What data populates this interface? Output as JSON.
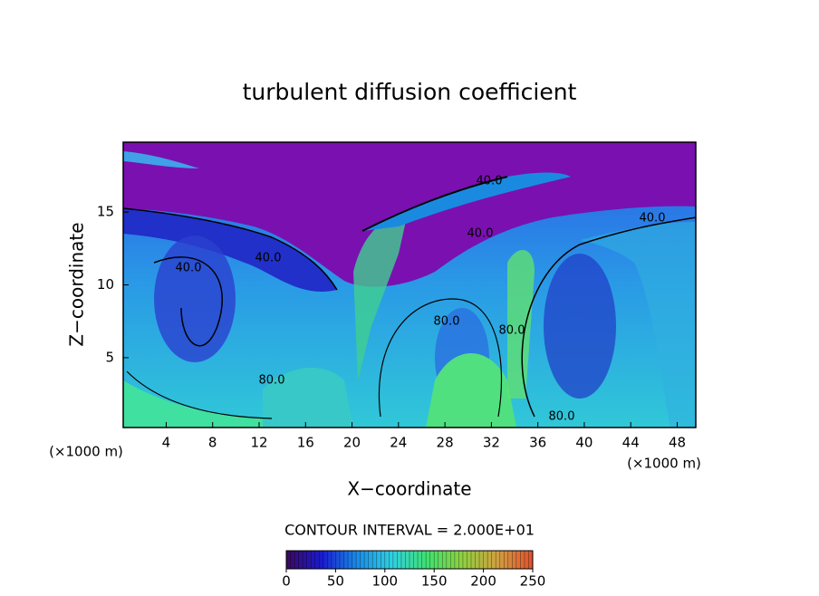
{
  "chart_data": {
    "type": "heatmap",
    "title": "turbulent diffusion coefficient",
    "x_label": "X−coordinate",
    "y_label": "Z−coordinate",
    "x_unit": "(×1000 m)",
    "y_unit": "(×1000 m)",
    "xlim": [
      0.3,
      49.6
    ],
    "xticks": [
      4,
      8,
      12,
      16,
      20,
      24,
      28,
      32,
      36,
      40,
      44,
      48
    ],
    "ylim": [
      0.2,
      19.8
    ],
    "yticks": [
      5,
      10,
      15
    ],
    "contour_interval_label": "CONTOUR INTERVAL = 2.000E+01",
    "contour_labels": [
      "40.0",
      "40.0",
      "40.0",
      "40.0",
      "40.0",
      "80.0",
      "80.0",
      "80.0",
      "80.0"
    ],
    "colorbar": {
      "lim": [
        0,
        250
      ],
      "ticks": [
        0,
        50,
        100,
        150,
        200,
        250
      ],
      "colors": [
        "#3a0a5a",
        "#1a1ad0",
        "#1a8ae6",
        "#30d0e0",
        "#40e070",
        "#90d040",
        "#d0a040",
        "#e05030"
      ]
    }
  }
}
